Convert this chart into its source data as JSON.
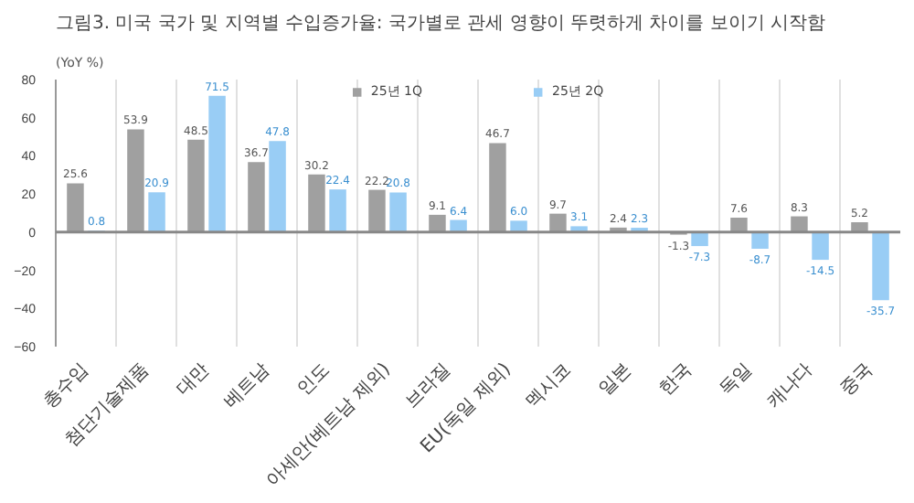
{
  "chart_data": {
    "type": "bar",
    "title": "그림3. 미국 국가 및 지역별 수입증가율: 국가별로 관세 영향이 뚜렷하게 차이를 보이기 시작함",
    "ylabel": "(YoY %)",
    "categories": [
      "총수입",
      "첨단기술제품",
      "대만",
      "베트남",
      "인도",
      "아세안(베트남 제외)",
      "브라질",
      "EU(독일 제외)",
      "멕시코",
      "일본",
      "한국",
      "독일",
      "캐나다",
      "중국"
    ],
    "series": [
      {
        "name": "25년 1Q",
        "color": "#a0a0a0",
        "values": [
          25.6,
          53.9,
          48.5,
          36.7,
          30.2,
          22.2,
          9.1,
          46.7,
          9.7,
          2.4,
          -1.3,
          7.6,
          8.3,
          5.2
        ],
        "value_labels": [
          "25.6",
          "53.9",
          "48.5",
          "36.7",
          "30.2",
          "22.2",
          "9.1",
          "46.7",
          "9.7",
          "2.4",
          "-1.3",
          "7.6",
          "8.3",
          "5.2"
        ]
      },
      {
        "name": "25년 2Q",
        "color": "#99cdf5",
        "values": [
          0.8,
          20.9,
          71.5,
          47.8,
          22.4,
          20.8,
          6.4,
          6.0,
          3.1,
          2.3,
          -7.3,
          -8.7,
          -14.5,
          -35.7
        ],
        "value_labels": [
          "0.8",
          "20.9",
          "71.5",
          "47.8",
          "22.4",
          "20.8",
          "6.4",
          "6.0",
          "3.1",
          "2.3",
          "-7.3",
          "-8.7",
          "-14.5",
          "-35.7"
        ]
      }
    ],
    "ylim": [
      -60,
      80
    ],
    "yticks": [
      -60,
      -40,
      -20,
      0,
      20,
      40,
      60,
      80
    ],
    "grid": "x",
    "legend": "top"
  }
}
